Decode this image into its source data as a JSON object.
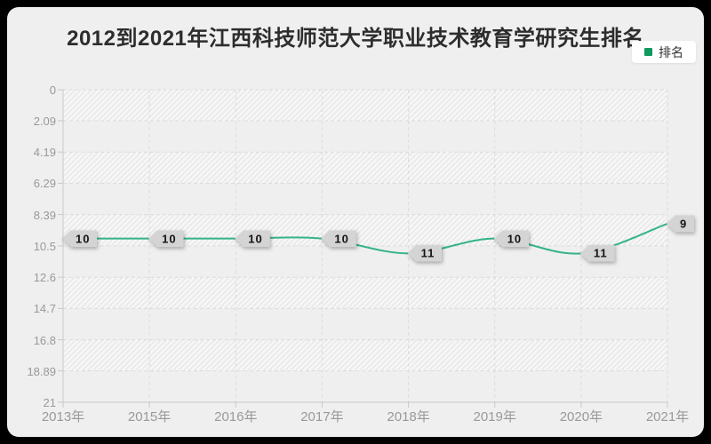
{
  "title": "2012到2021年江西科技师范大学职业技术教育学研究生排名",
  "legend": {
    "label": "排名"
  },
  "chart_data": {
    "type": "line",
    "title": "2012到2021年江西科技师范大学职业技术教育学研究生排名",
    "categories": [
      "2013年",
      "2015年",
      "2016年",
      "2017年",
      "2018年",
      "2019年",
      "2020年",
      "2021年"
    ],
    "series": [
      {
        "name": "排名",
        "values": [
          10,
          10,
          10,
          10,
          11,
          10,
          11,
          9
        ]
      }
    ],
    "point_labels": [
      "10",
      "10",
      "10",
      "10",
      "11",
      "10",
      "11",
      "9"
    ],
    "x_axis": {
      "tick_labels": [
        "2013年",
        "2015年",
        "2016年",
        "2017年",
        "2018年",
        "2019年",
        "2020年",
        "2021年"
      ]
    },
    "y_axis": {
      "inverted": true,
      "min": 0,
      "max": 21,
      "tick_labels": [
        "0",
        "2.09",
        "4.19",
        "6.29",
        "8.39",
        "10.5",
        "12.6",
        "14.7",
        "16.8",
        "18.89",
        "21"
      ]
    },
    "smooth": true,
    "grid": "dashed",
    "split_area": "alternating-diagonal-hatch",
    "legend_position": "top-right"
  },
  "colors": {
    "page_bg": "#000000",
    "card_bg": "#efefef",
    "title_color": "#2d2d2d",
    "axis_label": "#999999",
    "axis_line": "#c8c8c8",
    "grid_line": "#dcdcdc",
    "series_line": "#35b485",
    "legend_marker": "#12995f",
    "label_bg": "#d4d4d4",
    "label_text": "#141414",
    "legend_bg": "#ffffff",
    "hatch_bg": "#f6f6f6",
    "hatch_line": "#e3e3e3"
  }
}
